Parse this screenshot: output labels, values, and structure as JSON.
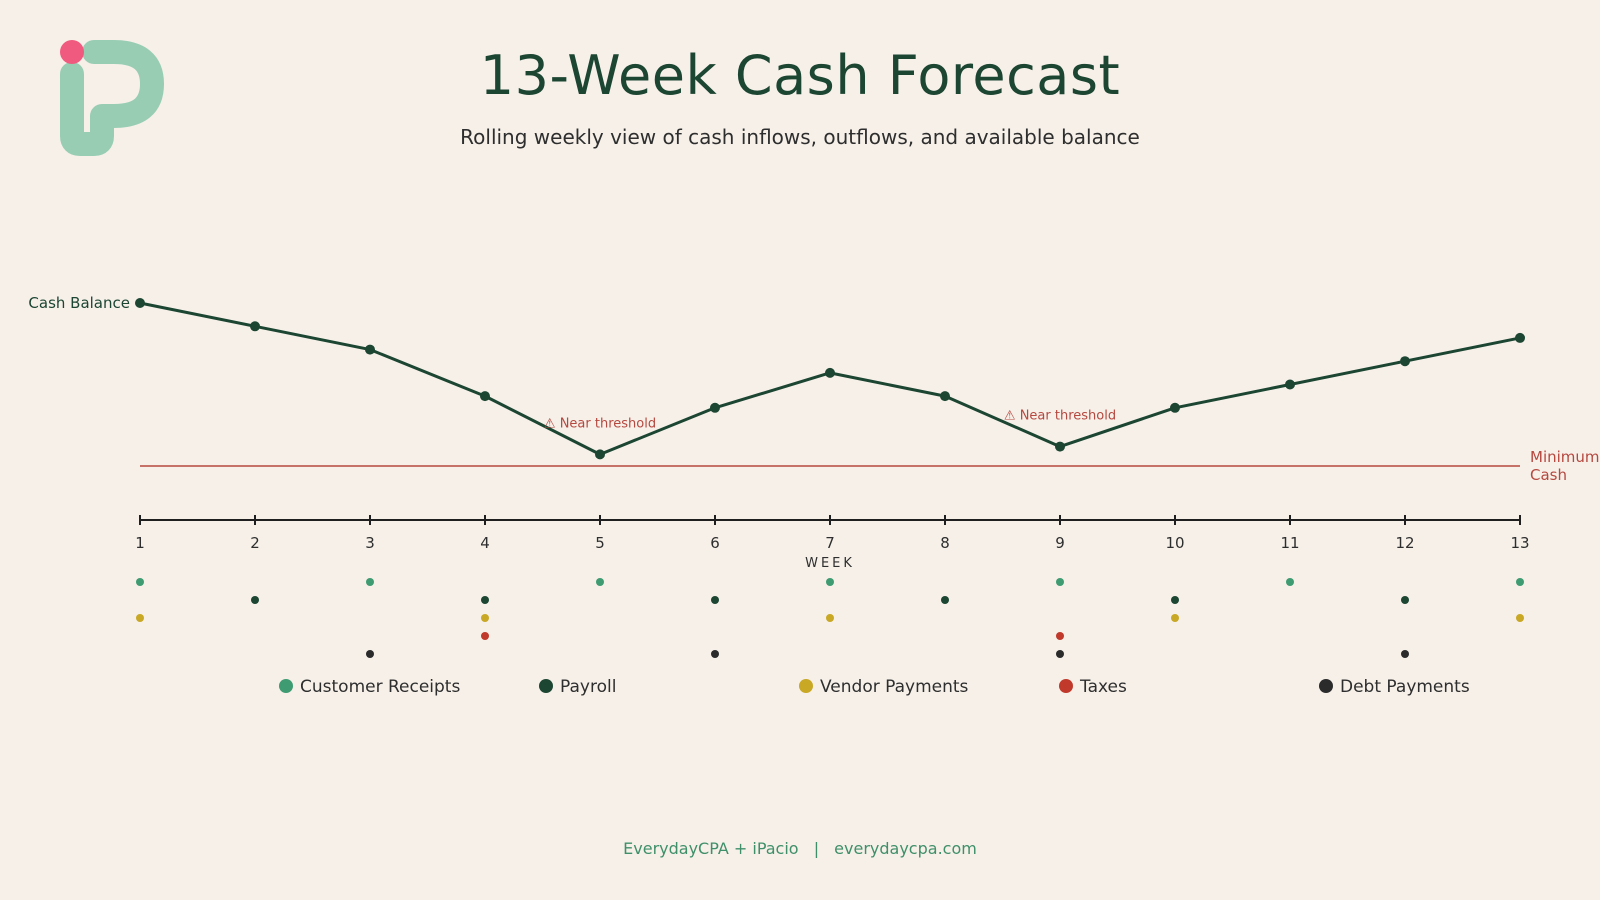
{
  "title": "13-Week Cash Forecast",
  "subtitle": "Rolling weekly view of cash inflows, outflows, and available balance",
  "footer": {
    "left": "EverydayCPA + iPacio",
    "separator": "|",
    "right": "everydaycpa.com"
  },
  "logo": {
    "name": "iPacio logo",
    "colors": {
      "shape": "#98cdb3",
      "dot": "#f05a7e"
    }
  },
  "chart_data": {
    "type": "line",
    "title": "13-Week Cash Forecast",
    "subtitle": "Rolling weekly view of cash inflows, outflows, and available balance",
    "xlabel": "WEEK",
    "ylabel": "",
    "x": [
      1,
      2,
      3,
      4,
      5,
      6,
      7,
      8,
      9,
      10,
      11,
      12,
      13
    ],
    "ylim": [
      0,
      100
    ],
    "grid": false,
    "series": [
      {
        "name": "Cash Balance",
        "color": "#1c4532",
        "values": [
          72,
          66,
          60,
          48,
          33,
          45,
          54,
          48,
          35,
          45,
          51,
          57,
          63
        ]
      }
    ],
    "threshold": {
      "label_line1": "Minimum",
      "label_line2": "Cash",
      "value": 30,
      "color": "#b5483f"
    },
    "annotations": [
      {
        "week": 5,
        "text": "⚠ Near threshold"
      },
      {
        "week": 9,
        "text": "⚠ Near threshold"
      }
    ],
    "legend_position": "bottom",
    "event_categories": [
      {
        "name": "Customer Receipts",
        "color": "#3e9b72",
        "weeks": [
          1,
          3,
          5,
          7,
          9,
          11,
          13
        ]
      },
      {
        "name": "Payroll",
        "color": "#1c4532",
        "weeks": [
          2,
          4,
          6,
          8,
          10,
          12
        ]
      },
      {
        "name": "Vendor Payments",
        "color": "#c9a826",
        "weeks": [
          1,
          4,
          7,
          10,
          13
        ]
      },
      {
        "name": "Taxes",
        "color": "#c0392b",
        "weeks": [
          4,
          9
        ]
      },
      {
        "name": "Debt Payments",
        "color": "#2b2b2b",
        "weeks": [
          3,
          6,
          9,
          12
        ]
      }
    ]
  }
}
